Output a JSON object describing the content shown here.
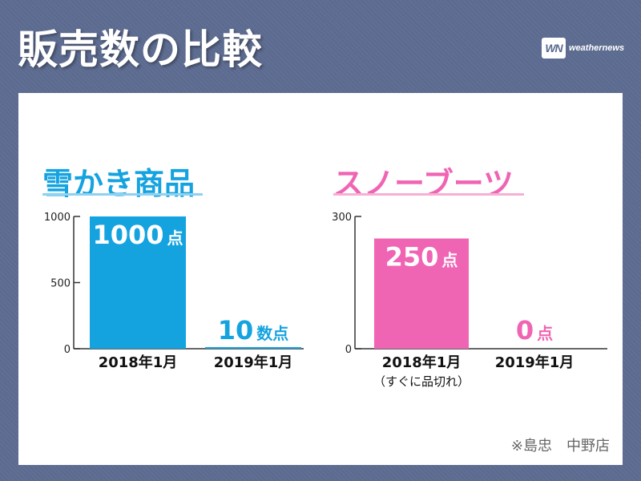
{
  "title": "販売数の比較",
  "logo": {
    "mark": "WN",
    "text": "weathernews"
  },
  "note": "※島忠　中野店",
  "chart_data": [
    {
      "type": "bar",
      "title": "雪かき商品",
      "categories": [
        "2018年1月",
        "2019年1月"
      ],
      "values": [
        1000,
        10
      ],
      "data_labels": [
        "1000点",
        "10数点"
      ],
      "ylim": [
        0,
        1000
      ],
      "yticks": [
        0,
        500,
        1000
      ],
      "category_notes": [
        "",
        ""
      ],
      "grid": false,
      "colors": {
        "bar": "#15a3e0",
        "title": "#15a3e0",
        "label": "#15a3e0"
      }
    },
    {
      "type": "bar",
      "title": "スノーブーツ",
      "categories": [
        "2018年1月",
        "2019年1月"
      ],
      "values": [
        250,
        0
      ],
      "data_labels": [
        "250点",
        "0点"
      ],
      "ylim": [
        0,
        300
      ],
      "yticks": [
        0,
        300
      ],
      "category_notes": [
        "（すぐに品切れ）",
        ""
      ],
      "grid": false,
      "colors": {
        "bar": "#f064b4",
        "title": "#f064b4",
        "label": "#f064b4"
      }
    }
  ]
}
